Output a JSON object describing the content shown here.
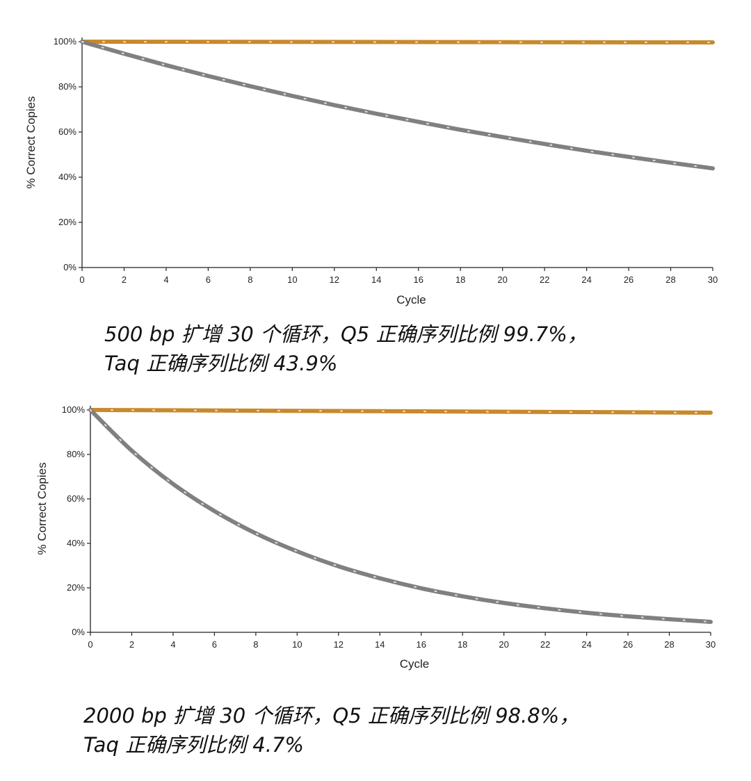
{
  "chart_data": [
    {
      "type": "line",
      "xlabel": "Cycle",
      "ylabel": "% Correct Copies",
      "xlim": [
        0,
        30
      ],
      "ylim": [
        0,
        100
      ],
      "xticks": [
        "0",
        "2",
        "4",
        "6",
        "8",
        "10",
        "12",
        "14",
        "16",
        "18",
        "20",
        "22",
        "24",
        "26",
        "28",
        "30"
      ],
      "yticks": [
        "0%",
        "20%",
        "40%",
        "60%",
        "80%",
        "100%"
      ],
      "grid": false,
      "series": [
        {
          "color": "#C8892C",
          "style": "dashed",
          "x": [
            0,
            30
          ],
          "values": [
            100,
            99.7
          ]
        },
        {
          "color": "#808080",
          "style": "dashed",
          "x": [
            0,
            2,
            4,
            6,
            8,
            10,
            12,
            14,
            16,
            18,
            20,
            22,
            24,
            26,
            28,
            30
          ],
          "values": [
            100,
            94.7,
            89.6,
            84.8,
            80.3,
            76.0,
            71.9,
            68.1,
            64.5,
            61.0,
            57.8,
            54.7,
            51.7,
            49.0,
            46.4,
            43.9
          ]
        }
      ]
    },
    {
      "type": "line",
      "xlabel": "Cycle",
      "ylabel": "% Correct Copies",
      "xlim": [
        0,
        30
      ],
      "ylim": [
        0,
        100
      ],
      "xticks": [
        "0",
        "2",
        "4",
        "6",
        "8",
        "10",
        "12",
        "14",
        "16",
        "18",
        "20",
        "22",
        "24",
        "26",
        "28",
        "30"
      ],
      "yticks": [
        "0%",
        "20%",
        "40%",
        "60%",
        "80%",
        "100%"
      ],
      "grid": false,
      "series": [
        {
          "color": "#C8892C",
          "style": "dashed",
          "x": [
            0,
            30
          ],
          "values": [
            100,
            98.8
          ]
        },
        {
          "color": "#808080",
          "style": "dashed",
          "x": [
            0,
            2,
            4,
            6,
            8,
            10,
            12,
            14,
            16,
            18,
            20,
            22,
            24,
            26,
            28,
            30
          ],
          "values": [
            100,
            81.7,
            66.7,
            54.5,
            44.5,
            36.4,
            29.7,
            24.3,
            19.8,
            16.2,
            13.2,
            10.8,
            8.8,
            7.2,
            5.9,
            4.7
          ]
        }
      ]
    }
  ],
  "captions": [
    {
      "line1": "500 bp 扩增 30 个循环，Q5 正确序列比例 99.7%，",
      "line2": "Taq 正确序列比例 43.9%"
    },
    {
      "line1": "2000 bp 扩增 30 个循环，Q5 正确序列比例 98.8%，",
      "line2": "Taq 正确序列比例 4.7%"
    }
  ]
}
